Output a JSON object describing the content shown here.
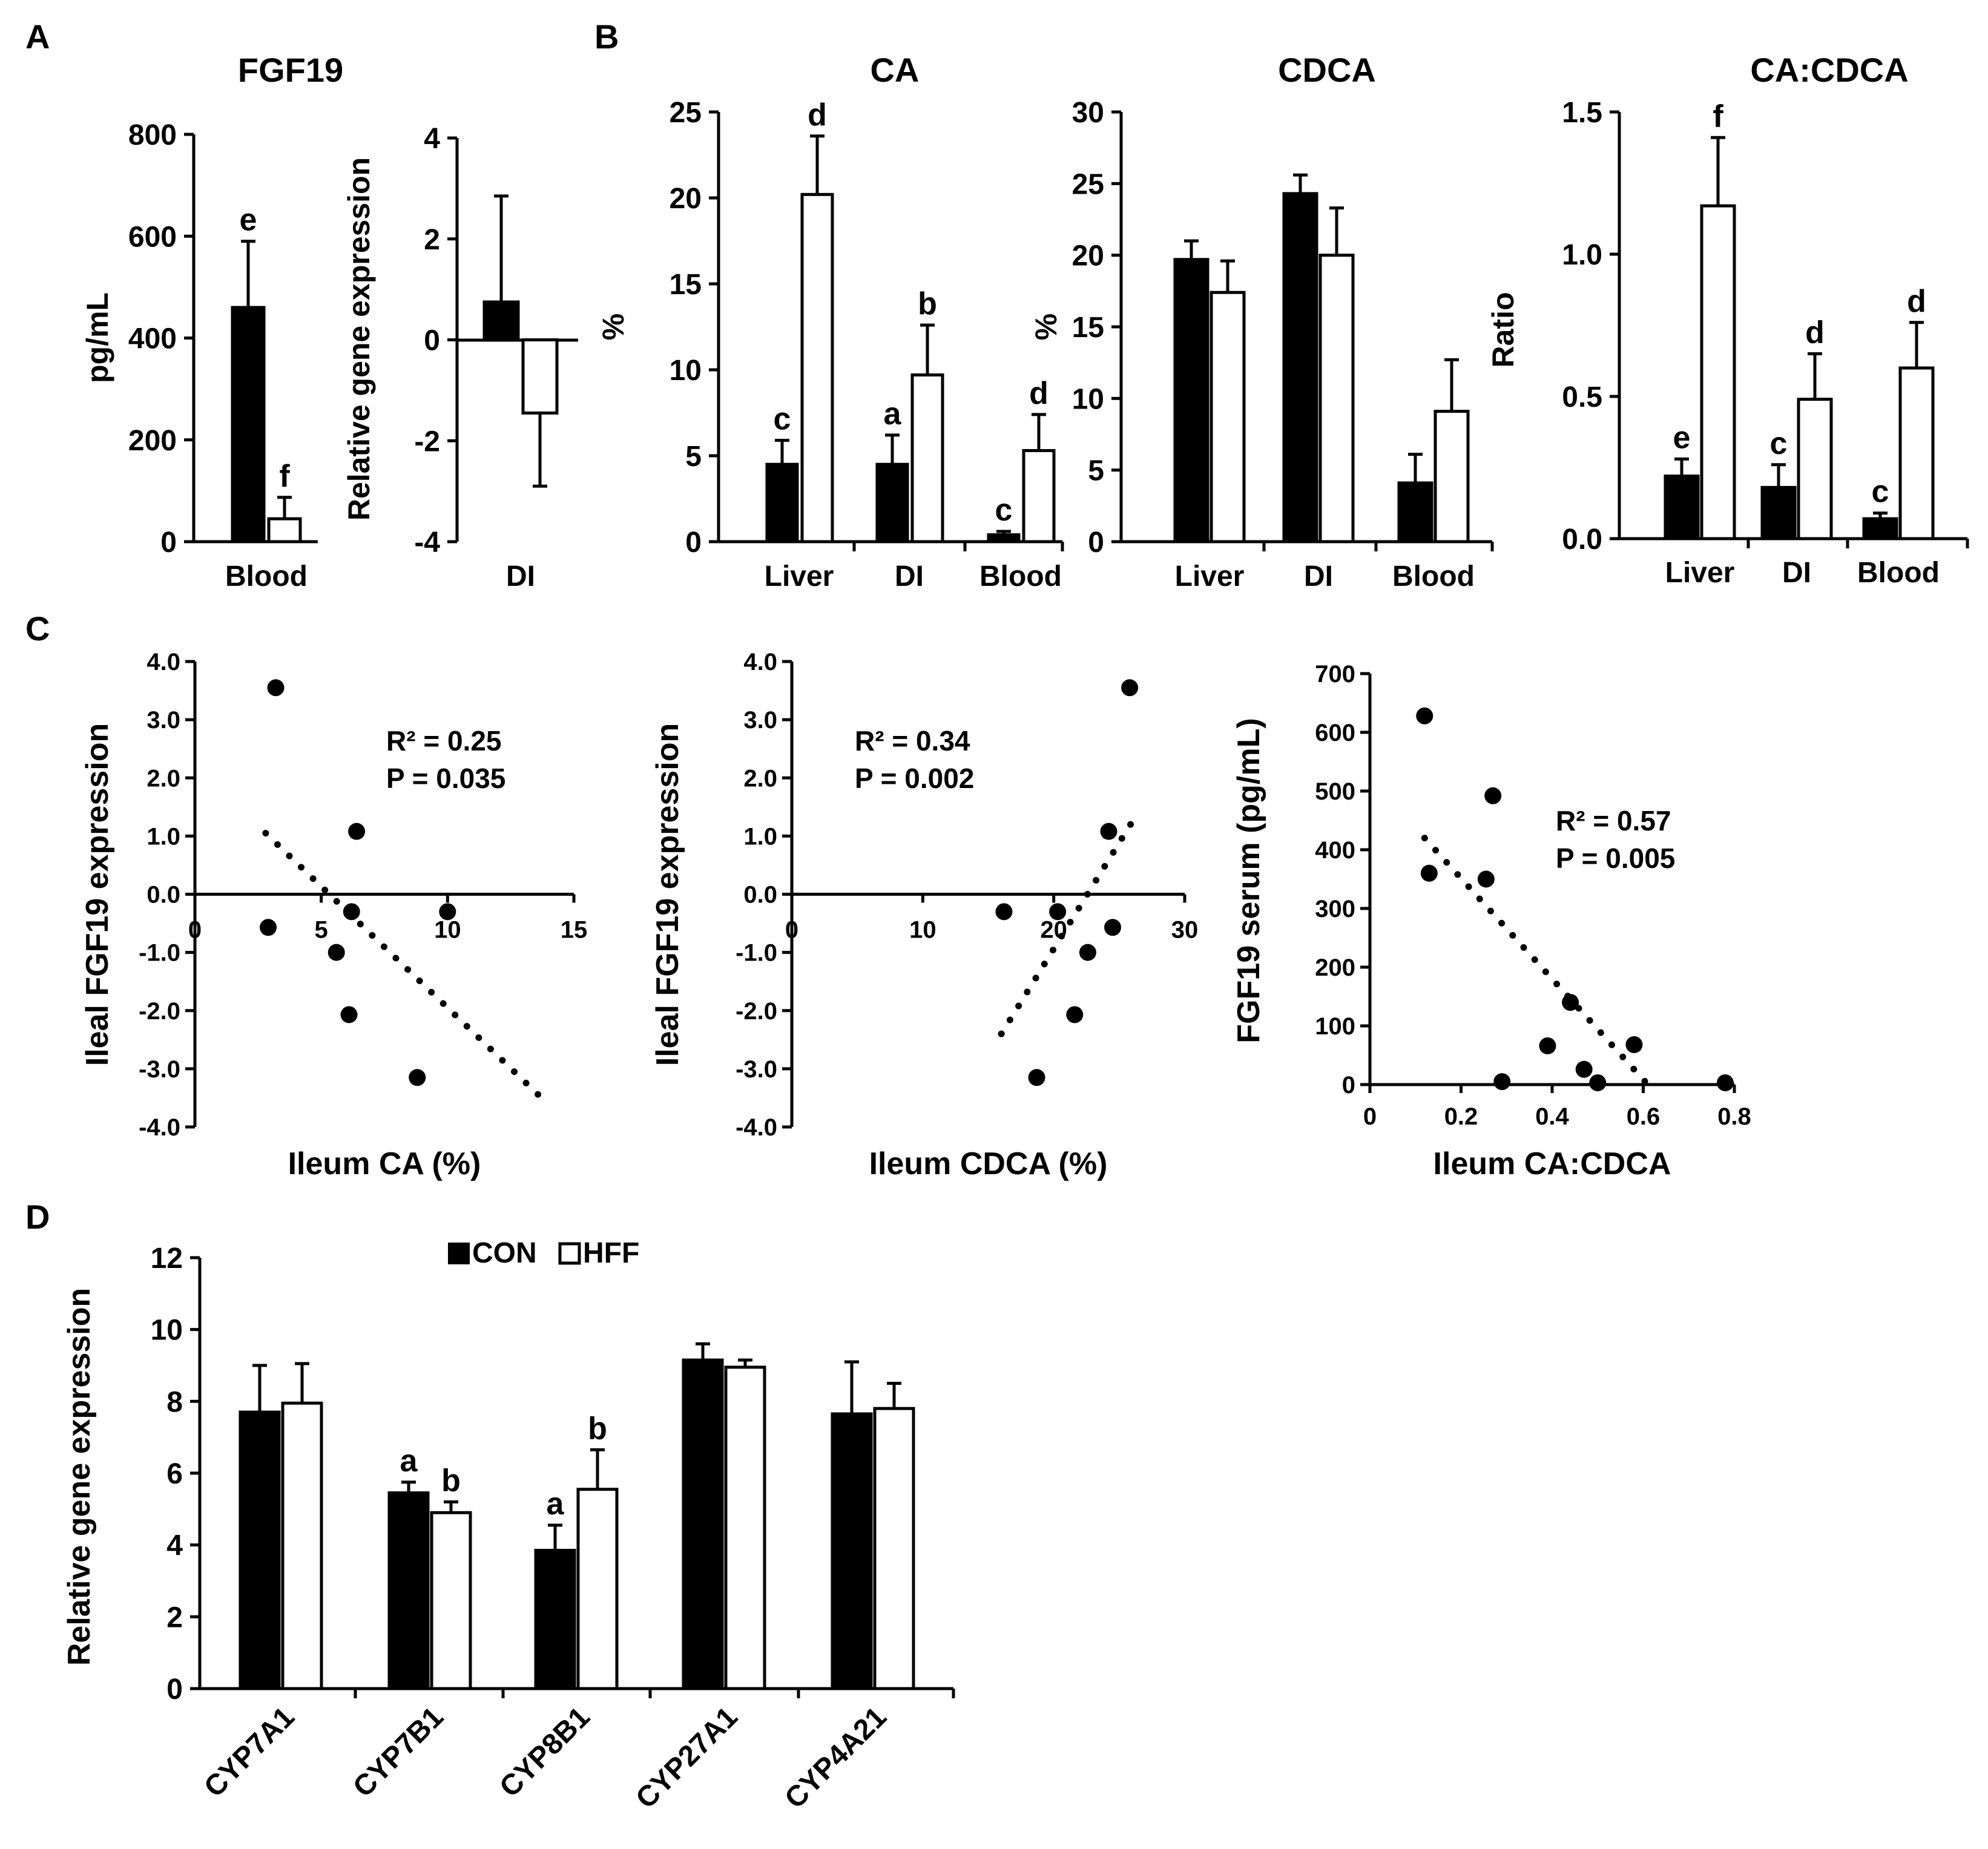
{
  "panel_letters": [
    "A",
    "B",
    "C",
    "D"
  ],
  "legend": {
    "con": "CON",
    "hff": "HFF"
  },
  "colors": {
    "con": "#000000",
    "hff": "#ffffff"
  },
  "chart_data": [
    {
      "id": "A1",
      "type": "bar",
      "title": "FGF19",
      "ylabel": "pg/mL",
      "ylim": [
        0,
        800
      ],
      "yticks": [
        "0",
        "200",
        "400",
        "600",
        "800"
      ],
      "categories": [
        "Blood"
      ],
      "series": [
        {
          "name": "CON",
          "values": [
            460
          ],
          "errors": [
            130
          ],
          "letters": [
            "e"
          ]
        },
        {
          "name": "HFF",
          "values": [
            45
          ],
          "errors": [
            42
          ],
          "letters": [
            "f"
          ]
        }
      ]
    },
    {
      "id": "A2",
      "type": "bar",
      "title": "",
      "ylabel": "Relative gene expression",
      "ylim": [
        -4,
        4
      ],
      "yticks": [
        "-4",
        "-2",
        "0",
        "2",
        "4"
      ],
      "categories": [
        "DI"
      ],
      "series": [
        {
          "name": "CON",
          "values": [
            0.75
          ],
          "errors": [
            2.1
          ],
          "letters": [
            ""
          ]
        },
        {
          "name": "HFF",
          "values": [
            -1.45
          ],
          "errors": [
            1.45
          ],
          "letters": [
            ""
          ]
        }
      ]
    },
    {
      "id": "B1",
      "type": "bar",
      "title": "CA",
      "ylabel": "%",
      "ylim": [
        0,
        25
      ],
      "yticks": [
        "0",
        "5",
        "10",
        "15",
        "20",
        "25"
      ],
      "categories": [
        "Liver",
        "DI",
        "Blood"
      ],
      "series": [
        {
          "name": "CON",
          "values": [
            4.5,
            4.5,
            0.4
          ],
          "errors": [
            1.4,
            1.7,
            0.2
          ],
          "letters": [
            "c",
            "a",
            "c"
          ]
        },
        {
          "name": "HFF",
          "values": [
            20.2,
            9.7,
            5.3
          ],
          "errors": [
            3.4,
            2.9,
            2.1
          ],
          "letters": [
            "d",
            "b",
            "d"
          ]
        }
      ]
    },
    {
      "id": "B2",
      "type": "bar",
      "title": "CDCA",
      "ylabel": "%",
      "ylim": [
        0,
        30
      ],
      "yticks": [
        "0",
        "5",
        "10",
        "15",
        "20",
        "25",
        "30"
      ],
      "categories": [
        "Liver",
        "DI",
        "Blood"
      ],
      "series": [
        {
          "name": "CON",
          "values": [
            19.7,
            24.3,
            4.1
          ],
          "errors": [
            1.3,
            1.3,
            2.0
          ],
          "letters": [
            "",
            "",
            ""
          ]
        },
        {
          "name": "HFF",
          "values": [
            17.4,
            20.0,
            9.1
          ],
          "errors": [
            2.2,
            3.3,
            3.6
          ],
          "letters": [
            "",
            "",
            ""
          ]
        }
      ]
    },
    {
      "id": "B3",
      "type": "bar",
      "title": "CA:CDCA",
      "ylabel": "Ratio",
      "ylim": [
        0,
        1.5
      ],
      "yticks": [
        "0.0",
        "0.5",
        "1.0",
        "1.5"
      ],
      "categories": [
        "Liver",
        "DI",
        "Blood"
      ],
      "series": [
        {
          "name": "CON",
          "values": [
            0.22,
            0.18,
            0.07
          ],
          "errors": [
            0.06,
            0.08,
            0.02
          ],
          "letters": [
            "e",
            "c",
            "c"
          ]
        },
        {
          "name": "HFF",
          "values": [
            1.17,
            0.49,
            0.6
          ],
          "errors": [
            0.24,
            0.16,
            0.16
          ],
          "letters": [
            "f",
            "d",
            "d"
          ]
        }
      ]
    },
    {
      "id": "C1",
      "type": "scatter",
      "xlabel": "Ileum CA (%)",
      "ylabel": "Ileal FGF19 expression",
      "xlim": [
        0,
        15
      ],
      "ylim": [
        -4,
        4
      ],
      "xticks": [
        "0",
        "5",
        "10",
        "15"
      ],
      "yticks": [
        "-4.0",
        "-3.0",
        "-2.0",
        "-1.0",
        "0.0",
        "1.0",
        "2.0",
        "3.0",
        "4.0"
      ],
      "points": [
        [
          3.2,
          3.55
        ],
        [
          2.9,
          -0.57
        ],
        [
          6.4,
          1.08
        ],
        [
          5.6,
          -1.0
        ],
        [
          6.2,
          -0.3
        ],
        [
          10.0,
          -0.3
        ],
        [
          6.1,
          -2.07
        ],
        [
          8.8,
          -3.15
        ]
      ],
      "trend": [
        [
          2.8,
          1.05
        ],
        [
          13.6,
          -3.45
        ]
      ],
      "r2": "R² = 0.25",
      "p": "P = 0.035"
    },
    {
      "id": "C2",
      "type": "scatter",
      "xlabel": "Ileum CDCA (%)",
      "ylabel": "Ileal FGF19 expression",
      "xlim": [
        0,
        30
      ],
      "ylim": [
        -4,
        4
      ],
      "xticks": [
        "0",
        "10",
        "20",
        "30"
      ],
      "yticks": [
        "-4.0",
        "-3.0",
        "-2.0",
        "-1.0",
        "0.0",
        "1.0",
        "2.0",
        "3.0",
        "4.0"
      ],
      "points": [
        [
          25.8,
          3.55
        ],
        [
          24.2,
          1.08
        ],
        [
          16.2,
          -0.3
        ],
        [
          20.3,
          -0.3
        ],
        [
          24.5,
          -0.57
        ],
        [
          22.6,
          -1.0
        ],
        [
          21.6,
          -2.07
        ],
        [
          18.7,
          -3.15
        ]
      ],
      "trend": [
        [
          16.0,
          -2.4
        ],
        [
          26.0,
          1.25
        ]
      ],
      "r2": "R² = 0.34",
      "p": "P = 0.002"
    },
    {
      "id": "C3",
      "type": "scatter",
      "xlabel": "Ileum CA:CDCA",
      "ylabel": "FGF19 serum (pg/mL)",
      "xlim": [
        0,
        0.8
      ],
      "ylim": [
        0,
        700
      ],
      "xticks": [
        "0",
        "0.2",
        "0.4",
        "0.6",
        "0.8"
      ],
      "yticks": [
        "0",
        "100",
        "200",
        "300",
        "400",
        "500",
        "600",
        "700"
      ],
      "points": [
        [
          0.12,
          628
        ],
        [
          0.13,
          360
        ],
        [
          0.255,
          350
        ],
        [
          0.27,
          492
        ],
        [
          0.44,
          140
        ],
        [
          0.39,
          66
        ],
        [
          0.47,
          26
        ],
        [
          0.58,
          68
        ],
        [
          0.29,
          5
        ],
        [
          0.5,
          3
        ],
        [
          0.78,
          3
        ]
      ],
      "trend": [
        [
          0.12,
          420
        ],
        [
          0.61,
          0
        ]
      ],
      "r2": "R² = 0.57",
      "p": "P = 0.005"
    },
    {
      "id": "D",
      "type": "bar",
      "title": "",
      "ylabel": "Relative gene expression",
      "ylim": [
        0,
        12
      ],
      "yticks": [
        "0",
        "2",
        "4",
        "6",
        "8",
        "10",
        "12"
      ],
      "categories": [
        "CYP7A1",
        "CYP7B1",
        "CYP8B1",
        "CYP27A1",
        "CYP4A21"
      ],
      "series": [
        {
          "name": "CON",
          "values": [
            7.7,
            5.45,
            3.85,
            9.15,
            7.65
          ],
          "errors": [
            1.3,
            0.3,
            0.7,
            0.45,
            1.45
          ],
          "letters": [
            "",
            "a",
            "a",
            "",
            ""
          ]
        },
        {
          "name": "HFF",
          "values": [
            7.95,
            4.9,
            5.55,
            8.95,
            7.8
          ],
          "errors": [
            1.1,
            0.3,
            1.1,
            0.2,
            0.7
          ],
          "letters": [
            "",
            "b",
            "b",
            "",
            ""
          ]
        }
      ]
    }
  ]
}
